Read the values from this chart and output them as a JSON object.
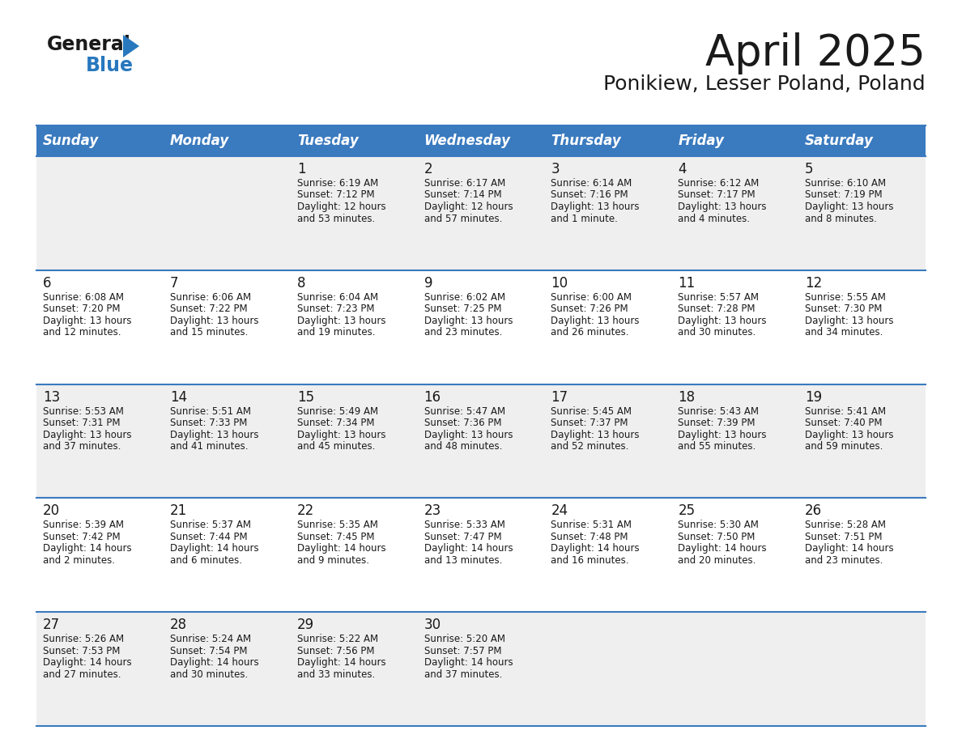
{
  "title": "April 2025",
  "subtitle": "Ponikiew, Lesser Poland, Poland",
  "header_bg": "#3a7abf",
  "header_text_color": "#ffffff",
  "row_bg_odd": "#efefef",
  "row_bg_even": "#ffffff",
  "border_color": "#3a7abf",
  "day_headers": [
    "Sunday",
    "Monday",
    "Tuesday",
    "Wednesday",
    "Thursday",
    "Friday",
    "Saturday"
  ],
  "days": [
    {
      "day": 1,
      "col": 2,
      "row": 0,
      "sunrise": "6:19 AM",
      "sunset": "7:12 PM",
      "daylight": "12 hours and 53 minutes."
    },
    {
      "day": 2,
      "col": 3,
      "row": 0,
      "sunrise": "6:17 AM",
      "sunset": "7:14 PM",
      "daylight": "12 hours and 57 minutes."
    },
    {
      "day": 3,
      "col": 4,
      "row": 0,
      "sunrise": "6:14 AM",
      "sunset": "7:16 PM",
      "daylight": "13 hours and 1 minute."
    },
    {
      "day": 4,
      "col": 5,
      "row": 0,
      "sunrise": "6:12 AM",
      "sunset": "7:17 PM",
      "daylight": "13 hours and 4 minutes."
    },
    {
      "day": 5,
      "col": 6,
      "row": 0,
      "sunrise": "6:10 AM",
      "sunset": "7:19 PM",
      "daylight": "13 hours and 8 minutes."
    },
    {
      "day": 6,
      "col": 0,
      "row": 1,
      "sunrise": "6:08 AM",
      "sunset": "7:20 PM",
      "daylight": "13 hours and 12 minutes."
    },
    {
      "day": 7,
      "col": 1,
      "row": 1,
      "sunrise": "6:06 AM",
      "sunset": "7:22 PM",
      "daylight": "13 hours and 15 minutes."
    },
    {
      "day": 8,
      "col": 2,
      "row": 1,
      "sunrise": "6:04 AM",
      "sunset": "7:23 PM",
      "daylight": "13 hours and 19 minutes."
    },
    {
      "day": 9,
      "col": 3,
      "row": 1,
      "sunrise": "6:02 AM",
      "sunset": "7:25 PM",
      "daylight": "13 hours and 23 minutes."
    },
    {
      "day": 10,
      "col": 4,
      "row": 1,
      "sunrise": "6:00 AM",
      "sunset": "7:26 PM",
      "daylight": "13 hours and 26 minutes."
    },
    {
      "day": 11,
      "col": 5,
      "row": 1,
      "sunrise": "5:57 AM",
      "sunset": "7:28 PM",
      "daylight": "13 hours and 30 minutes."
    },
    {
      "day": 12,
      "col": 6,
      "row": 1,
      "sunrise": "5:55 AM",
      "sunset": "7:30 PM",
      "daylight": "13 hours and 34 minutes."
    },
    {
      "day": 13,
      "col": 0,
      "row": 2,
      "sunrise": "5:53 AM",
      "sunset": "7:31 PM",
      "daylight": "13 hours and 37 minutes."
    },
    {
      "day": 14,
      "col": 1,
      "row": 2,
      "sunrise": "5:51 AM",
      "sunset": "7:33 PM",
      "daylight": "13 hours and 41 minutes."
    },
    {
      "day": 15,
      "col": 2,
      "row": 2,
      "sunrise": "5:49 AM",
      "sunset": "7:34 PM",
      "daylight": "13 hours and 45 minutes."
    },
    {
      "day": 16,
      "col": 3,
      "row": 2,
      "sunrise": "5:47 AM",
      "sunset": "7:36 PM",
      "daylight": "13 hours and 48 minutes."
    },
    {
      "day": 17,
      "col": 4,
      "row": 2,
      "sunrise": "5:45 AM",
      "sunset": "7:37 PM",
      "daylight": "13 hours and 52 minutes."
    },
    {
      "day": 18,
      "col": 5,
      "row": 2,
      "sunrise": "5:43 AM",
      "sunset": "7:39 PM",
      "daylight": "13 hours and 55 minutes."
    },
    {
      "day": 19,
      "col": 6,
      "row": 2,
      "sunrise": "5:41 AM",
      "sunset": "7:40 PM",
      "daylight": "13 hours and 59 minutes."
    },
    {
      "day": 20,
      "col": 0,
      "row": 3,
      "sunrise": "5:39 AM",
      "sunset": "7:42 PM",
      "daylight": "14 hours and 2 minutes."
    },
    {
      "day": 21,
      "col": 1,
      "row": 3,
      "sunrise": "5:37 AM",
      "sunset": "7:44 PM",
      "daylight": "14 hours and 6 minutes."
    },
    {
      "day": 22,
      "col": 2,
      "row": 3,
      "sunrise": "5:35 AM",
      "sunset": "7:45 PM",
      "daylight": "14 hours and 9 minutes."
    },
    {
      "day": 23,
      "col": 3,
      "row": 3,
      "sunrise": "5:33 AM",
      "sunset": "7:47 PM",
      "daylight": "14 hours and 13 minutes."
    },
    {
      "day": 24,
      "col": 4,
      "row": 3,
      "sunrise": "5:31 AM",
      "sunset": "7:48 PM",
      "daylight": "14 hours and 16 minutes."
    },
    {
      "day": 25,
      "col": 5,
      "row": 3,
      "sunrise": "5:30 AM",
      "sunset": "7:50 PM",
      "daylight": "14 hours and 20 minutes."
    },
    {
      "day": 26,
      "col": 6,
      "row": 3,
      "sunrise": "5:28 AM",
      "sunset": "7:51 PM",
      "daylight": "14 hours and 23 minutes."
    },
    {
      "day": 27,
      "col": 0,
      "row": 4,
      "sunrise": "5:26 AM",
      "sunset": "7:53 PM",
      "daylight": "14 hours and 27 minutes."
    },
    {
      "day": 28,
      "col": 1,
      "row": 4,
      "sunrise": "5:24 AM",
      "sunset": "7:54 PM",
      "daylight": "14 hours and 30 minutes."
    },
    {
      "day": 29,
      "col": 2,
      "row": 4,
      "sunrise": "5:22 AM",
      "sunset": "7:56 PM",
      "daylight": "14 hours and 33 minutes."
    },
    {
      "day": 30,
      "col": 3,
      "row": 4,
      "sunrise": "5:20 AM",
      "sunset": "7:57 PM",
      "daylight": "14 hours and 37 minutes."
    }
  ],
  "num_rows": 5,
  "num_cols": 7,
  "logo_text1_color": "#1a1a1a",
  "logo_text2_color": "#2878be",
  "logo_triangle_color": "#2878be",
  "title_fontsize": 38,
  "subtitle_fontsize": 18,
  "header_fontsize": 12,
  "day_num_fontsize": 12,
  "cell_fontsize": 8.5
}
